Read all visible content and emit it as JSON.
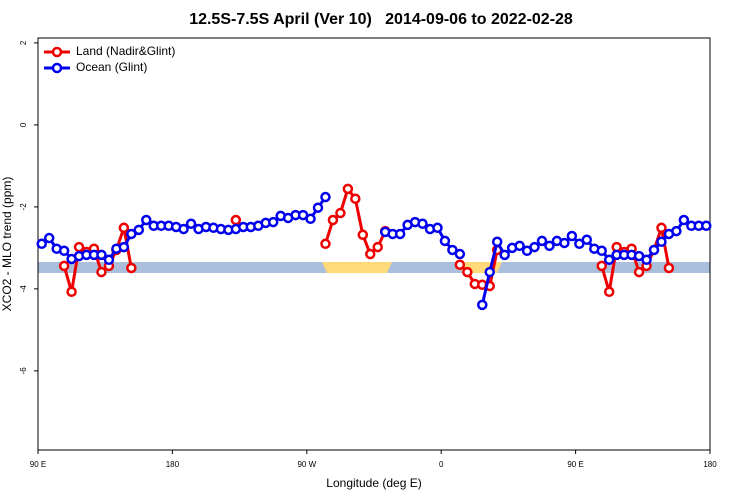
{
  "chart_data": {
    "type": "line",
    "title": "12.5S-7.5S April (Ver 10)   2014-09-06 to 2022-02-28",
    "xlabel": "Longitude (deg E)",
    "ylabel": "XCO2 - MLO trend (ppm)",
    "xlim": [
      90,
      540
    ],
    "ylim": [
      -7.93,
      2.12
    ],
    "xticks": [
      {
        "value": 90,
        "label": "90 E"
      },
      180,
      {
        "value": 270,
        "label": "90 W"
      },
      {
        "value": 360,
        "label": "0"
      },
      {
        "value": 450,
        "label": "90 E"
      },
      {
        "value": 540,
        "label": "180"
      }
    ],
    "yticks": [
      -6,
      -4,
      -2,
      0,
      2
    ],
    "legend": "top-left",
    "series": [
      {
        "name": "Land (Nadir&Glint)",
        "color": "#ee0000",
        "x": [
          107.5,
          112.5,
          117.5,
          122.5,
          127.5,
          132.5,
          137.5,
          142.5,
          147.5,
          152.5,
          187.5,
          222.5,
          252.5,
          282.5,
          287.5,
          292.5,
          297.5,
          302.5,
          307.5,
          312.5,
          317.5,
          322.5,
          347.5,
          372.5,
          377.5,
          382.5,
          387.5,
          392.5,
          397.5,
          432.5,
          467.5,
          472.5,
          477.5,
          482.5,
          487.5,
          492.5,
          497.5,
          502.5,
          507.5,
          512.5
        ],
        "values": [
          -3.44,
          -4.07,
          -2.98,
          -3.1,
          -3.02,
          -3.59,
          -3.44,
          -3.05,
          -2.51,
          -3.49,
          null,
          -2.32,
          null,
          -2.9,
          -2.32,
          -2.15,
          -1.56,
          -1.8,
          -2.68,
          -3.15,
          -2.98,
          -2.59,
          null,
          -3.41,
          -3.59,
          -3.88,
          -3.9,
          -3.93,
          -3.05,
          null,
          -3.44,
          -4.07,
          -2.98,
          -3.1,
          -3.02,
          -3.59,
          -3.44,
          -3.05,
          -2.51,
          -3.49
        ]
      },
      {
        "name": "Ocean (Glint)",
        "color": "#0000ee",
        "x": [
          92.5,
          97.5,
          102.5,
          107.5,
          112.5,
          117.5,
          122.5,
          127.5,
          132.5,
          137.5,
          142.5,
          147.5,
          152.5,
          157.5,
          162.5,
          167.5,
          172.5,
          177.5,
          182.5,
          187.5,
          192.5,
          197.5,
          202.5,
          207.5,
          212.5,
          217.5,
          222.5,
          227.5,
          232.5,
          237.5,
          242.5,
          247.5,
          252.5,
          257.5,
          262.5,
          267.5,
          272.5,
          277.5,
          282.5,
          287.5,
          292.5,
          297.5,
          302.5,
          307.5,
          312.5,
          317.5,
          322.5,
          327.5,
          332.5,
          337.5,
          342.5,
          347.5,
          352.5,
          357.5,
          362.5,
          367.5,
          372.5,
          377.5,
          382.5,
          387.5,
          392.5,
          397.5,
          402.5,
          407.5,
          412.5,
          417.5,
          422.5,
          427.5,
          432.5,
          437.5,
          442.5,
          447.5,
          452.5,
          457.5,
          462.5,
          467.5,
          472.5,
          477.5,
          482.5,
          487.5,
          492.5,
          497.5,
          502.5,
          507.5,
          512.5,
          517.5,
          522.5,
          527.5,
          532.5,
          537.5
        ],
        "values": [
          -2.9,
          -2.76,
          -3.02,
          -3.07,
          -3.27,
          -3.2,
          -3.17,
          -3.17,
          -3.17,
          -3.29,
          -3.02,
          -2.98,
          -2.66,
          -2.56,
          -2.32,
          -2.46,
          -2.46,
          -2.46,
          -2.49,
          -2.54,
          -2.41,
          -2.54,
          -2.49,
          -2.51,
          -2.54,
          -2.56,
          -2.54,
          -2.49,
          -2.49,
          -2.46,
          -2.39,
          -2.37,
          -2.22,
          -2.27,
          -2.2,
          -2.2,
          -2.29,
          -2.02,
          -1.76,
          null,
          null,
          null,
          null,
          null,
          null,
          null,
          -2.61,
          -2.66,
          -2.66,
          -2.44,
          -2.37,
          -2.41,
          -2.54,
          -2.51,
          -2.83,
          -3.05,
          -3.15,
          null,
          null,
          -4.39,
          -3.59,
          -2.85,
          -3.17,
          -3.0,
          -2.95,
          -3.07,
          -2.98,
          -2.83,
          -2.95,
          -2.83,
          -2.88,
          -2.71,
          -2.9,
          -2.8,
          -3.02,
          -3.07,
          -3.29,
          -3.17,
          -3.17,
          -3.17,
          -3.2,
          -3.29,
          -3.05,
          -2.85,
          -2.66,
          -2.59,
          -2.32,
          -2.46,
          -2.46,
          -2.46
        ]
      }
    ]
  }
}
